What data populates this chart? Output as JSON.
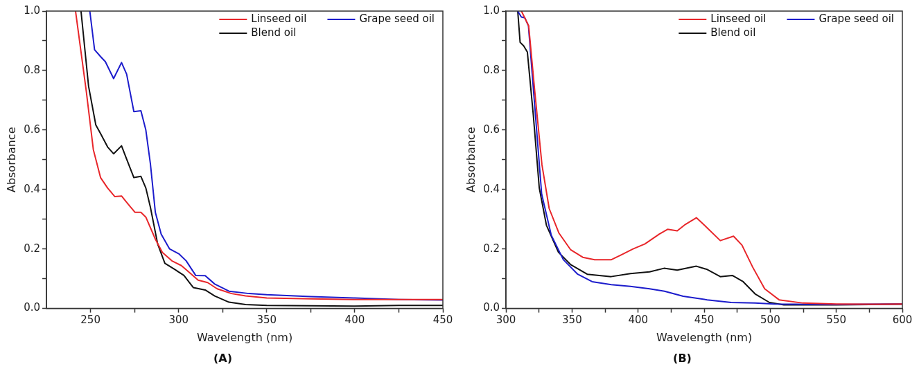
{
  "chart_data": [
    {
      "type": "line",
      "title": "(A)",
      "xlabel": "Wavelength (nm)",
      "ylabel": "Absorbance",
      "xlim": [
        225,
        450
      ],
      "ylim": [
        0,
        1.0
      ],
      "legend": "top right",
      "grid": false,
      "marker": "none",
      "line_style": "solid",
      "xticks": [
        250,
        {
          "value": 275,
          "label": null
        },
        300,
        {
          "value": 325,
          "label": null
        },
        350,
        {
          "value": 375,
          "label": null
        },
        400,
        {
          "value": 425,
          "label": null
        },
        450
      ],
      "yticks": [
        {
          "value": 0,
          "label": "0.0"
        },
        {
          "value": 0.1,
          "label": null
        },
        {
          "value": 0.2,
          "label": "0.2"
        },
        {
          "value": 0.3,
          "label": null
        },
        {
          "value": 0.4,
          "label": "0.4"
        },
        {
          "value": 0.5,
          "label": null
        },
        {
          "value": 0.6,
          "label": "0.6"
        },
        {
          "value": 0.7,
          "label": null
        },
        {
          "value": 0.8,
          "label": "0.8"
        },
        {
          "value": 0.9,
          "label": null
        },
        {
          "value": 1.0,
          "label": "1.0"
        }
      ],
      "series": [
        {
          "name": "Linseed oil",
          "color": "#e8262a",
          "x": [
            241.5,
            247.6,
            251.6,
            255.7,
            259.7,
            263.8,
            267.6,
            271.9,
            275.3,
            278.6,
            281.4,
            286.8,
            290.8,
            296.2,
            301.6,
            305.7,
            311.1,
            316.5,
            321.9,
            330,
            338,
            350,
            375,
            400,
            425,
            450
          ],
          "values": [
            1.0,
            0.73,
            0.534,
            0.44,
            0.405,
            0.376,
            0.378,
            0.347,
            0.323,
            0.323,
            0.307,
            0.233,
            0.188,
            0.16,
            0.144,
            0.123,
            0.095,
            0.087,
            0.066,
            0.05,
            0.042,
            0.035,
            0.032,
            0.03,
            0.03,
            0.03
          ]
        },
        {
          "name": "Grape seed oil",
          "color": "#1c1ccc",
          "x": [
            249.6,
            252.3,
            255.7,
            258.4,
            263.1,
            267.6,
            270.5,
            274.6,
            278.6,
            281.4,
            284,
            286.8,
            290.1,
            294.9,
            300.3,
            304.3,
            309.7,
            315.1,
            320.5,
            328.6,
            340,
            350,
            375,
            400,
            425,
            450
          ],
          "values": [
            1.0,
            0.87,
            0.847,
            0.83,
            0.773,
            0.827,
            0.788,
            0.662,
            0.665,
            0.6,
            0.486,
            0.323,
            0.25,
            0.2,
            0.183,
            0.16,
            0.111,
            0.11,
            0.082,
            0.058,
            0.05,
            0.046,
            0.04,
            0.035,
            0.03,
            0.028
          ]
        },
        {
          "name": "Blend oil",
          "color": "#111111",
          "x": [
            244.6,
            248.9,
            253,
            255.7,
            259.7,
            263.1,
            267.6,
            270.5,
            274.6,
            278.6,
            281.4,
            284,
            288.1,
            292.2,
            297.6,
            303,
            308.4,
            315.1,
            320.5,
            328.6,
            338,
            350,
            375,
            400,
            425,
            450
          ],
          "values": [
            1.0,
            0.747,
            0.617,
            0.588,
            0.543,
            0.52,
            0.547,
            0.502,
            0.44,
            0.444,
            0.405,
            0.34,
            0.217,
            0.152,
            0.132,
            0.111,
            0.07,
            0.062,
            0.042,
            0.021,
            0.013,
            0.01,
            0.009,
            0.008,
            0.01,
            0.01
          ]
        }
      ]
    },
    {
      "type": "line",
      "title": "(B)",
      "xlabel": "Wavelength (nm)",
      "ylabel": "Absorbance",
      "xlim": [
        300,
        600
      ],
      "ylim": [
        0,
        1.0
      ],
      "legend": "top right",
      "grid": false,
      "marker": "none",
      "line_style": "solid",
      "xticks": [
        300,
        {
          "value": 325,
          "label": null
        },
        350,
        {
          "value": 375,
          "label": null
        },
        400,
        {
          "value": 425,
          "label": null
        },
        450,
        {
          "value": 475,
          "label": null
        },
        500,
        {
          "value": 525,
          "label": null
        },
        550,
        {
          "value": 575,
          "label": null
        },
        600
      ],
      "yticks": [
        {
          "value": 0,
          "label": "0.0"
        },
        {
          "value": 0.1,
          "label": null
        },
        {
          "value": 0.2,
          "label": "0.2"
        },
        {
          "value": 0.3,
          "label": null
        },
        {
          "value": 0.4,
          "label": "0.4"
        },
        {
          "value": 0.5,
          "label": null
        },
        {
          "value": 0.6,
          "label": "0.6"
        },
        {
          "value": 0.7,
          "label": null
        },
        {
          "value": 0.8,
          "label": "0.8"
        },
        {
          "value": 0.9,
          "label": null
        },
        {
          "value": 1.0,
          "label": "1.0"
        }
      ],
      "series": [
        {
          "name": "Linseed oil",
          "color": "#e8262a",
          "x": [
            311.7,
            317.2,
            321.8,
            327.2,
            332.7,
            340,
            349,
            358.1,
            367.1,
            379.8,
            387.1,
            396.2,
            405.2,
            416.1,
            422.3,
            429.6,
            435.9,
            444.1,
            450.4,
            462.2,
            472.2,
            478.6,
            486.7,
            495.8,
            506.7,
            524.8,
            550,
            575,
            600
          ],
          "values": [
            1.0,
            0.95,
            0.73,
            0.484,
            0.336,
            0.254,
            0.197,
            0.172,
            0.164,
            0.164,
            0.18,
            0.2,
            0.217,
            0.25,
            0.266,
            0.261,
            0.283,
            0.305,
            0.279,
            0.228,
            0.243,
            0.213,
            0.139,
            0.066,
            0.029,
            0.018,
            0.015,
            0.014,
            0.015
          ]
        },
        {
          "name": "Grape seed oil",
          "color": "#1c1ccc",
          "x": [
            308.9,
            311.6,
            314.3,
            317,
            321.6,
            327,
            334.3,
            343.4,
            354.3,
            365.2,
            379.7,
            394.2,
            408.7,
            420,
            434.1,
            452.3,
            470.4,
            488.5,
            503,
            550,
            575,
            600
          ],
          "values": [
            1.0,
            0.98,
            0.977,
            0.951,
            0.69,
            0.385,
            0.246,
            0.164,
            0.115,
            0.09,
            0.08,
            0.074,
            0.066,
            0.058,
            0.041,
            0.029,
            0.02,
            0.018,
            0.015,
            0.013,
            0.014,
            0.015
          ]
        },
        {
          "name": "Blend oil",
          "color": "#111111",
          "x": [
            308.9,
            310.7,
            313.4,
            316.2,
            320.7,
            325.2,
            330.6,
            339.7,
            348.8,
            361.5,
            379.6,
            394.2,
            408.7,
            419.6,
            429.6,
            444.1,
            452.3,
            462.2,
            471.3,
            479.5,
            488.5,
            499.4,
            510.3,
            550,
            575,
            600
          ],
          "values": [
            1.0,
            0.895,
            0.883,
            0.862,
            0.65,
            0.405,
            0.28,
            0.189,
            0.148,
            0.115,
            0.107,
            0.117,
            0.123,
            0.135,
            0.129,
            0.142,
            0.131,
            0.107,
            0.111,
            0.09,
            0.049,
            0.02,
            0.012,
            0.012,
            0.013,
            0.014
          ]
        }
      ]
    }
  ]
}
